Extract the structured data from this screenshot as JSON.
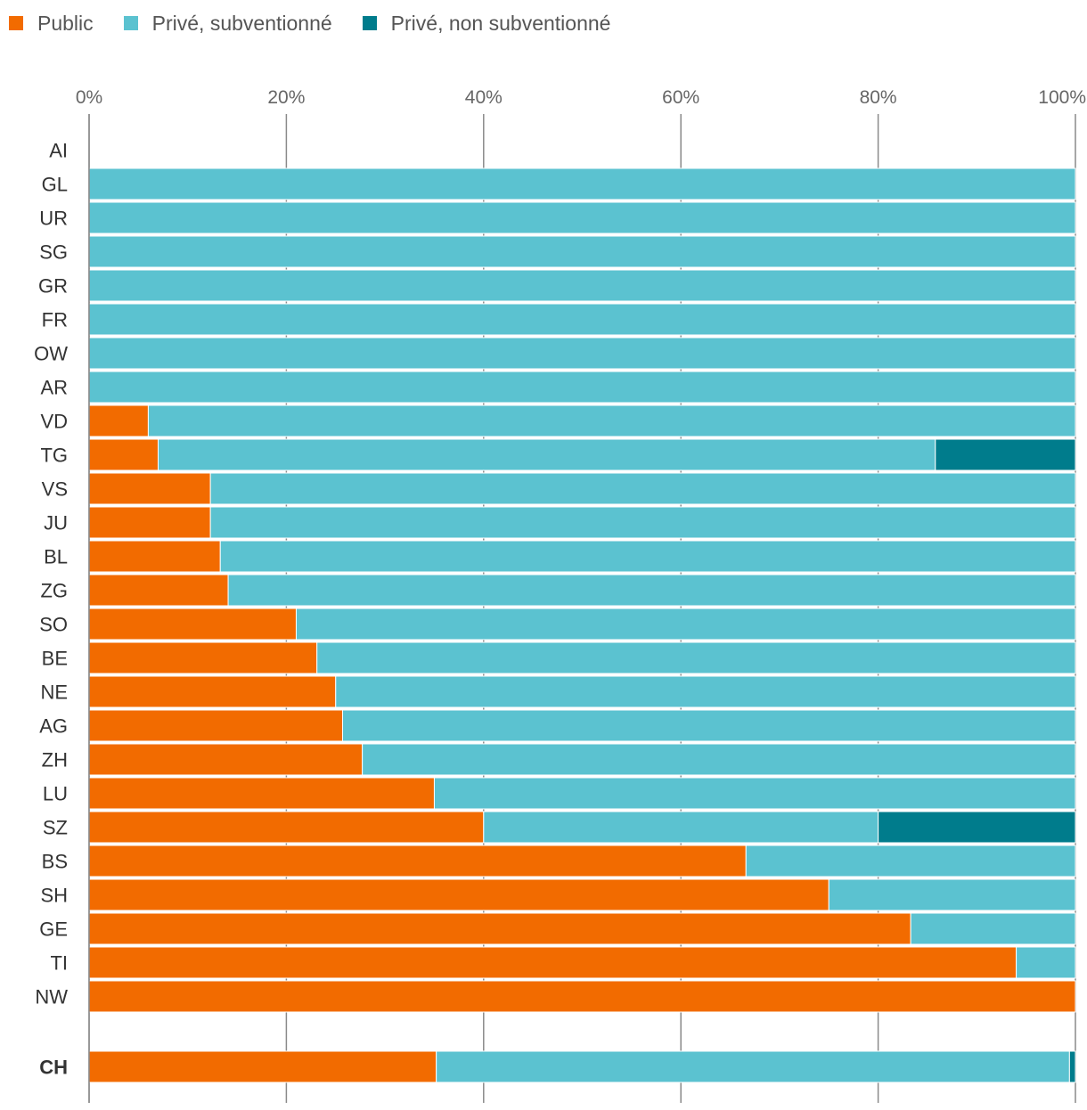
{
  "chart_data": {
    "type": "bar",
    "orientation": "horizontal",
    "stacked": true,
    "title": "",
    "xlabel": "",
    "ylabel": "",
    "xlim": [
      0,
      100
    ],
    "ticks": [
      "0%",
      "20%",
      "40%",
      "60%",
      "80%",
      "100%"
    ],
    "legend_position": "top-left",
    "categories": [
      "AI",
      "GL",
      "UR",
      "SG",
      "GR",
      "FR",
      "OW",
      "AR",
      "VD",
      "TG",
      "VS",
      "JU",
      "BL",
      "ZG",
      "SO",
      "BE",
      "NE",
      "AG",
      "ZH",
      "LU",
      "SZ",
      "BS",
      "SH",
      "GE",
      "TI",
      "NW"
    ],
    "series": [
      {
        "name": "Public",
        "color": "#f26b00",
        "values": [
          0,
          0,
          0,
          0,
          0,
          0,
          0,
          0,
          6,
          7,
          12.3,
          12.3,
          13.3,
          14.1,
          21,
          23.1,
          25,
          25.7,
          27.7,
          35,
          40,
          66.6,
          75,
          83.3,
          94,
          100
        ]
      },
      {
        "name": "Privé, subventionné",
        "color": "#5bc2d0",
        "values": [
          0,
          100,
          100,
          100,
          100,
          100,
          100,
          100,
          94,
          78.8,
          87.7,
          87.7,
          86.7,
          85.9,
          79,
          76.9,
          75,
          74.3,
          72.3,
          65,
          40,
          33.4,
          25,
          16.7,
          6,
          0
        ]
      },
      {
        "name": "Privé, non subventionné",
        "color": "#007c8c",
        "values": [
          0,
          0,
          0,
          0,
          0,
          0,
          0,
          0,
          0,
          14.2,
          0,
          0,
          0,
          0,
          0,
          0,
          0,
          0,
          0,
          0,
          20,
          0,
          0,
          0,
          0,
          0
        ]
      }
    ],
    "total": {
      "category": "CH",
      "values": [
        35.2,
        64.2,
        0.6
      ]
    }
  }
}
